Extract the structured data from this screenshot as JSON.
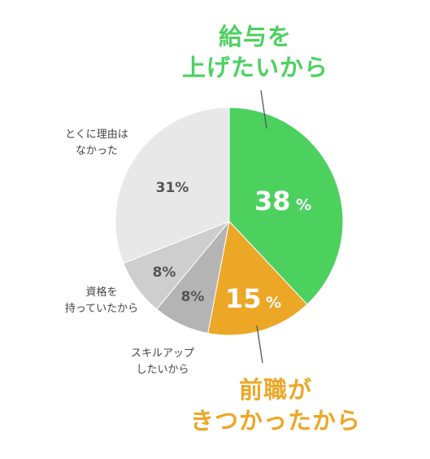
{
  "chart_data": {
    "type": "pie",
    "slices": [
      {
        "label_lines": [
          "給与を",
          "上げたいから"
        ],
        "value": 38,
        "value_label": "38",
        "color": "#4cd15f"
      },
      {
        "label_lines": [
          "前職が",
          "きつかったから"
        ],
        "value": 15,
        "value_label": "15",
        "color": "#eca727"
      },
      {
        "label_lines": [
          "スキルアップ",
          "したいから"
        ],
        "value": 8,
        "value_label": "8%",
        "color": "#b4b4b4"
      },
      {
        "label_lines": [
          "資格を",
          "持っていたから"
        ],
        "value": 8,
        "value_label": "8%",
        "color": "#cecece"
      },
      {
        "label_lines": [
          "とくに理由は",
          "なかった"
        ],
        "value": 31,
        "value_label": "31%",
        "color": "#e8e8e8"
      }
    ],
    "percent_sign": "%",
    "start_angle": "top",
    "direction": "clockwise"
  }
}
